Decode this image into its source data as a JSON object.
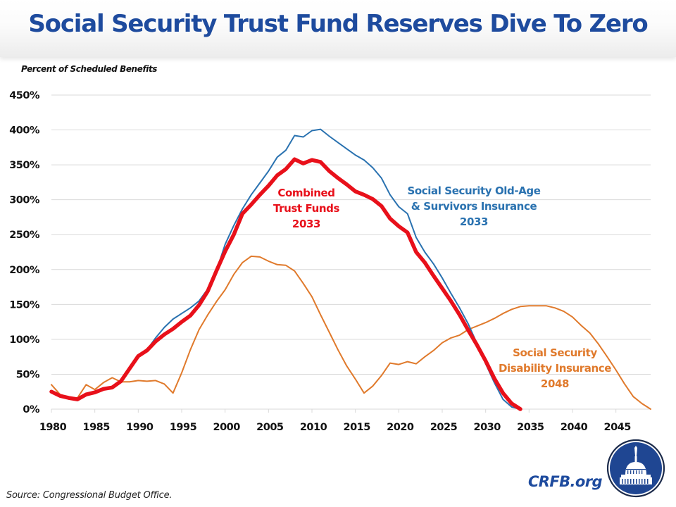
{
  "header": {
    "title": "Social Security Trust Fund Reserves Dive To Zero"
  },
  "footer": {
    "source": "Source: Congressional Budget Office.",
    "brand": "CRFB.org",
    "logo_icon": "capitol-dome-seal-icon"
  },
  "colors": {
    "title": "#1e4b9e",
    "combined": "#e8101a",
    "oasi": "#2a72b0",
    "di": "#e07a2c",
    "grid": "#d9d9d9"
  },
  "chart_data": {
    "type": "line",
    "title": "Social Security Trust Fund Reserves Dive To Zero",
    "ylabel": "Percent of Scheduled Benefits",
    "xlabel": "",
    "xlim": [
      1980,
      2049
    ],
    "ylim": [
      0,
      450
    ],
    "grid": true,
    "legend": "inline annotations",
    "x_ticks": [
      1980,
      1985,
      1990,
      1995,
      2000,
      2005,
      2010,
      2015,
      2020,
      2025,
      2030,
      2035,
      2040,
      2045
    ],
    "x_tick_labels": [
      "1980",
      "1985",
      "1990",
      "1995",
      "2000",
      "2005",
      "2010",
      "2015",
      "2020",
      "2025",
      "2030",
      "2035",
      "2040",
      "2045"
    ],
    "y_ticks": [
      0,
      50,
      100,
      150,
      200,
      250,
      300,
      350,
      400,
      450
    ],
    "y_tick_labels": [
      "0%",
      "50%",
      "100%",
      "150%",
      "200%",
      "250%",
      "300%",
      "350%",
      "400%",
      "450%"
    ],
    "series": [
      {
        "name": "Social Security Disability Insurance",
        "key": "di",
        "start_year": 1980,
        "values": [
          35,
          21,
          17,
          16,
          35,
          28,
          38,
          45,
          39,
          39,
          41,
          40,
          41,
          36,
          23,
          52,
          85,
          114,
          135,
          154,
          171,
          193,
          210,
          219,
          218,
          212,
          207,
          206,
          198,
          180,
          161,
          135,
          110,
          85,
          62,
          43,
          23,
          33,
          48,
          66,
          64,
          68,
          65,
          75,
          84,
          95,
          102,
          106,
          114,
          119,
          124,
          130,
          137,
          143,
          147,
          148,
          148,
          148,
          145,
          140,
          132,
          120,
          109,
          93,
          75,
          56,
          36,
          18,
          8,
          0
        ]
      },
      {
        "name": "Social Security Old-Age & Survivors Insurance",
        "key": "oasi",
        "start_year": 1980,
        "values": [
          24,
          18,
          15,
          13,
          20,
          23,
          28,
          30,
          39,
          57,
          76,
          85,
          102,
          117,
          129,
          137,
          145,
          155,
          172,
          198,
          236,
          263,
          287,
          307,
          324,
          341,
          361,
          371,
          392,
          390,
          399,
          401,
          391,
          382,
          373,
          364,
          357,
          346,
          331,
          307,
          290,
          280,
          246,
          225,
          208,
          188,
          166,
          145,
          122,
          94,
          65,
          38,
          14,
          3,
          0
        ]
      },
      {
        "name": "Combined Trust Funds",
        "key": "combined",
        "start_year": 1980,
        "values": [
          25,
          19,
          16,
          14,
          21,
          24,
          29,
          31,
          40,
          58,
          76,
          84,
          97,
          107,
          115,
          125,
          134,
          149,
          169,
          198,
          226,
          250,
          280,
          293,
          307,
          320,
          335,
          344,
          358,
          352,
          357,
          354,
          341,
          331,
          322,
          312,
          307,
          301,
          291,
          273,
          262,
          253,
          225,
          210,
          191,
          173,
          155,
          135,
          113,
          92,
          69,
          44,
          23,
          8,
          0
        ]
      }
    ],
    "annotations": [
      {
        "series": "combined",
        "lines": [
          "Combined",
          "Trust Funds",
          "2033"
        ]
      },
      {
        "series": "oasi",
        "lines": [
          "Social Security Old-Age",
          "& Survivors Insurance",
          "2033"
        ]
      },
      {
        "series": "di",
        "lines": [
          "Social Security",
          "Disability Insurance",
          "2048"
        ]
      }
    ]
  }
}
